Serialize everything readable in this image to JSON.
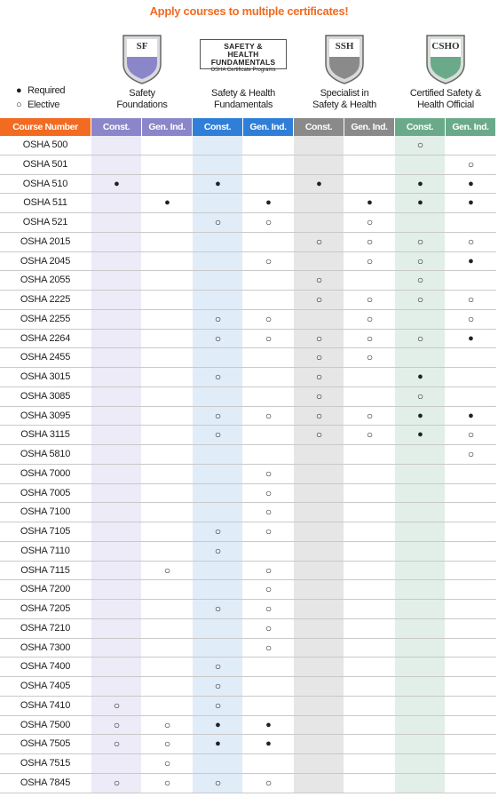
{
  "title": "Apply courses to multiple certificates!",
  "legend": [
    {
      "symbol": "●",
      "label": "Required"
    },
    {
      "symbol": "○",
      "label": "Elective"
    }
  ],
  "certificates": [
    {
      "logo": "SF",
      "name": "Safety Foundations"
    },
    {
      "logo": "SAFETY & HEALTH FUNDAMENTALS",
      "logo_subtitle": "OSHA Certificate Programs",
      "name": "Safety & Health Fundamentals"
    },
    {
      "logo": "SSH",
      "name": "Specialist in Safety & Health"
    },
    {
      "logo": "CSHO",
      "name": "Certified Safety & Health Official"
    }
  ],
  "table": {
    "header": [
      "Course Number",
      "Const.",
      "Gen. Ind.",
      "Const.",
      "Gen. Ind.",
      "Const.",
      "Gen. Ind.",
      "Const.",
      "Gen. Ind."
    ],
    "rows": [
      [
        "OSHA 500",
        null,
        null,
        null,
        null,
        null,
        null,
        "○",
        null
      ],
      [
        "OSHA 501",
        null,
        null,
        null,
        null,
        null,
        null,
        null,
        "○"
      ],
      [
        "OSHA 510",
        "●",
        null,
        "●",
        null,
        "●",
        null,
        "●",
        "●"
      ],
      [
        "OSHA 511",
        null,
        "●",
        null,
        "●",
        null,
        "●",
        "●",
        "●"
      ],
      [
        "OSHA 521",
        null,
        null,
        "○",
        "○",
        null,
        "○",
        null,
        null
      ],
      [
        "OSHA 2015",
        null,
        null,
        null,
        null,
        "○",
        "○",
        "○",
        "○"
      ],
      [
        "OSHA 2045",
        null,
        null,
        null,
        "○",
        null,
        "○",
        "○",
        "●"
      ],
      [
        "OSHA 2055",
        null,
        null,
        null,
        null,
        "○",
        null,
        "○",
        null
      ],
      [
        "OSHA 2225",
        null,
        null,
        null,
        null,
        "○",
        "○",
        "○",
        "○"
      ],
      [
        "OSHA 2255",
        null,
        null,
        "○",
        "○",
        null,
        "○",
        null,
        "○"
      ],
      [
        "OSHA 2264",
        null,
        null,
        "○",
        "○",
        "○",
        "○",
        "○",
        "●"
      ],
      [
        "OSHA 2455",
        null,
        null,
        null,
        null,
        "○",
        "○",
        null,
        null
      ],
      [
        "OSHA 3015",
        null,
        null,
        "○",
        null,
        "○",
        null,
        "●",
        null
      ],
      [
        "OSHA 3085",
        null,
        null,
        null,
        null,
        "○",
        null,
        "○",
        null
      ],
      [
        "OSHA 3095",
        null,
        null,
        "○",
        "○",
        "○",
        "○",
        "●",
        "●"
      ],
      [
        "OSHA 3115",
        null,
        null,
        "○",
        null,
        "○",
        "○",
        "●",
        "○"
      ],
      [
        "OSHA 5810",
        null,
        null,
        null,
        null,
        null,
        null,
        null,
        "○"
      ],
      [
        "OSHA 7000",
        null,
        null,
        null,
        "○",
        null,
        null,
        null,
        null
      ],
      [
        "OSHA 7005",
        null,
        null,
        null,
        "○",
        null,
        null,
        null,
        null
      ],
      [
        "OSHA 7100",
        null,
        null,
        null,
        "○",
        null,
        null,
        null,
        null
      ],
      [
        "OSHA 7105",
        null,
        null,
        "○",
        "○",
        null,
        null,
        null,
        null
      ],
      [
        "OSHA 7110",
        null,
        null,
        "○",
        null,
        null,
        null,
        null,
        null
      ],
      [
        "OSHA 7115",
        null,
        "○",
        null,
        "○",
        null,
        null,
        null,
        null
      ],
      [
        "OSHA 7200",
        null,
        null,
        null,
        "○",
        null,
        null,
        null,
        null
      ],
      [
        "OSHA 7205",
        null,
        null,
        "○",
        "○",
        null,
        null,
        null,
        null
      ],
      [
        "OSHA 7210",
        null,
        null,
        null,
        "○",
        null,
        null,
        null,
        null
      ],
      [
        "OSHA 7300",
        null,
        null,
        null,
        "○",
        null,
        null,
        null,
        null
      ],
      [
        "OSHA 7400",
        null,
        null,
        "○",
        null,
        null,
        null,
        null,
        null
      ],
      [
        "OSHA 7405",
        null,
        null,
        "○",
        null,
        null,
        null,
        null,
        null
      ],
      [
        "OSHA 7410",
        "○",
        null,
        "○",
        null,
        null,
        null,
        null,
        null
      ],
      [
        "OSHA 7500",
        "○",
        "○",
        "●",
        "●",
        null,
        null,
        null,
        null
      ],
      [
        "OSHA 7505",
        "○",
        "○",
        "●",
        "●",
        null,
        null,
        null,
        null
      ],
      [
        "OSHA 7515",
        null,
        "○",
        null,
        null,
        null,
        null,
        null,
        null
      ],
      [
        "OSHA 7845",
        "○",
        "○",
        "○",
        "○",
        null,
        null,
        null,
        null
      ]
    ]
  }
}
